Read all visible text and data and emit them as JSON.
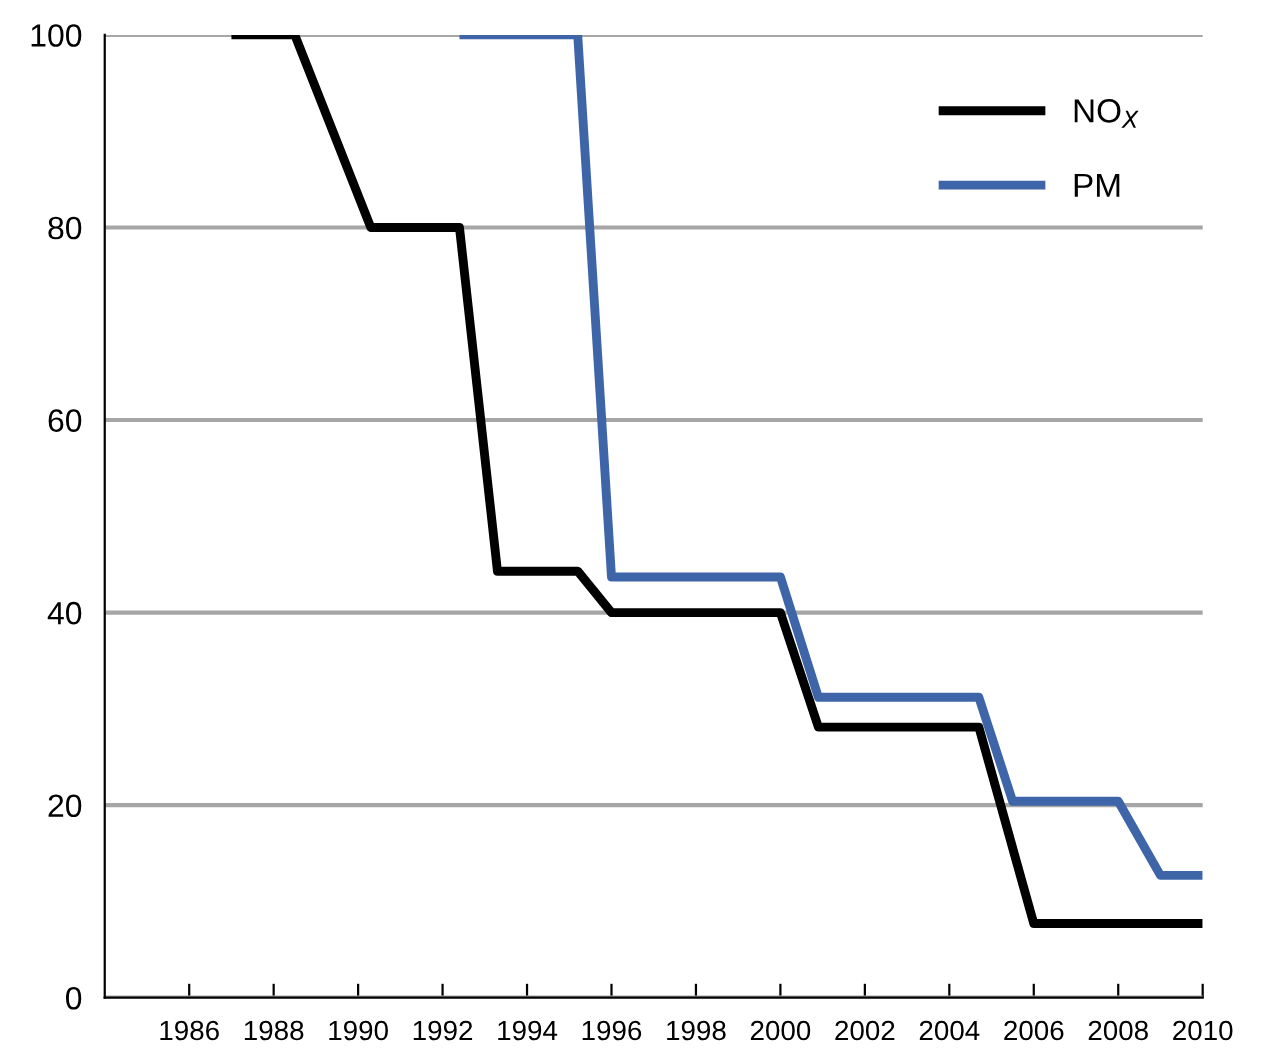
{
  "chart_data": {
    "type": "line",
    "xlim": [
      1984,
      2010
    ],
    "ylim": [
      0,
      100
    ],
    "xticks": [
      1986,
      1988,
      1990,
      1992,
      1994,
      1996,
      1998,
      2000,
      2002,
      2004,
      2006,
      2008,
      2010
    ],
    "yticks": [
      0,
      20,
      40,
      60,
      80,
      100
    ],
    "grid": "y",
    "legend": "top right",
    "marker": "none",
    "line_style": "solid",
    "series": [
      {
        "name": "NO$_{X}$",
        "color": "#000000",
        "x": [
          1987.0,
          1988.5,
          1990.3,
          1992.4,
          1993.3,
          1995.2,
          1996.0,
          2000.0,
          2000.9,
          2004.7,
          2006.0,
          2010.0
        ],
        "values": [
          100,
          100,
          80,
          80,
          44.3,
          44.3,
          40,
          40,
          28.1,
          28.1,
          7.7,
          7.7
        ]
      },
      {
        "name": "PM",
        "color": "#3f65a9",
        "x": [
          1992.4,
          1995.2,
          1996.0,
          2000.0,
          2000.9,
          2004.7,
          2005.5,
          2008.0,
          2009.0,
          2010.0
        ],
        "values": [
          100,
          100,
          43.7,
          43.7,
          31.2,
          31.2,
          20.4,
          20.4,
          12.7,
          12.7
        ]
      }
    ]
  }
}
